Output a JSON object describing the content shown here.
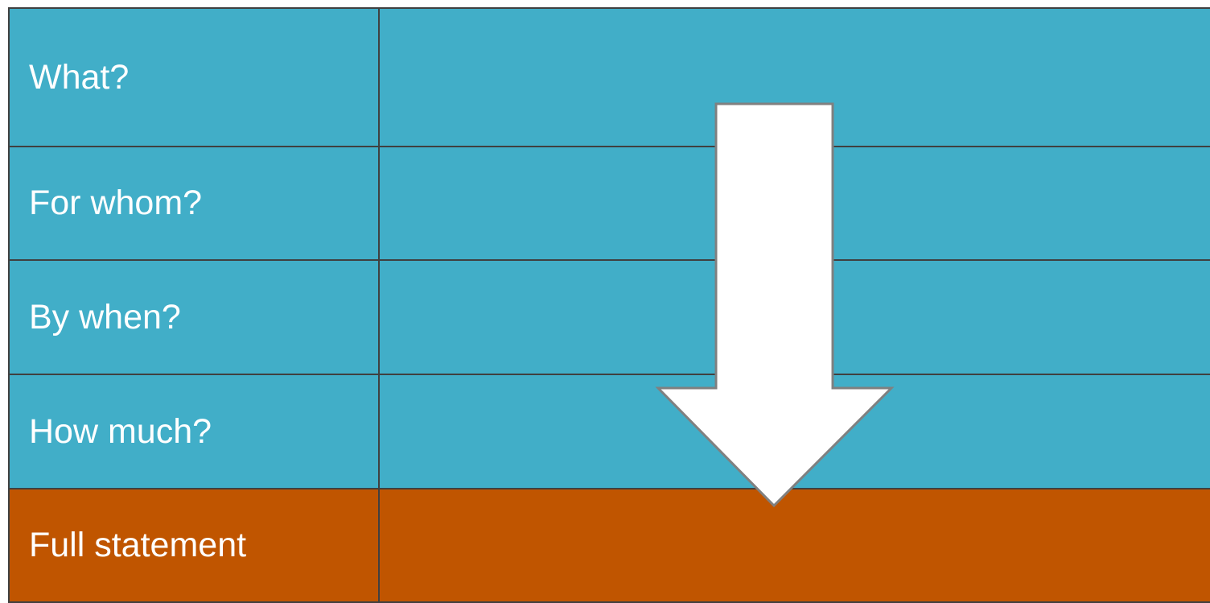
{
  "table": {
    "rows": [
      {
        "label": "What?",
        "value": "",
        "fill": "#41AEC8"
      },
      {
        "label": "For whom?",
        "value": "",
        "fill": "#41AEC8"
      },
      {
        "label": "By when?",
        "value": "",
        "fill": "#41AEC8"
      },
      {
        "label": "How much?",
        "value": "",
        "fill": "#41AEC8"
      },
      {
        "label": "Full statement",
        "value": "",
        "fill": "#C05500"
      }
    ]
  },
  "arrow": {
    "direction": "down",
    "fill": "#FFFFFF",
    "stroke": "#808080"
  }
}
